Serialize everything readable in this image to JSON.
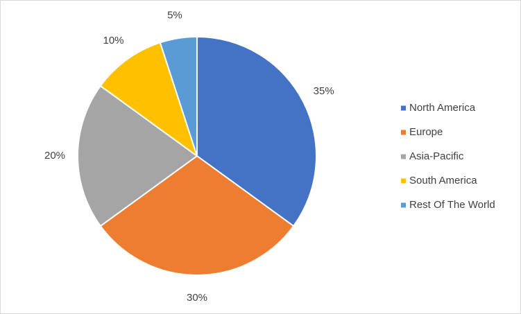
{
  "chart_data": {
    "type": "pie",
    "categories": [
      "North America",
      "Europe",
      "Asia-Pacific",
      "South America",
      "Rest Of The World"
    ],
    "values": [
      35,
      30,
      20,
      10,
      5
    ],
    "value_labels": [
      "35%",
      "30%",
      "20%",
      "10%",
      "5%"
    ],
    "colors": [
      "#4472c4",
      "#ed7d31",
      "#a5a5a5",
      "#ffc000",
      "#5b9bd5"
    ],
    "legend": "right"
  }
}
